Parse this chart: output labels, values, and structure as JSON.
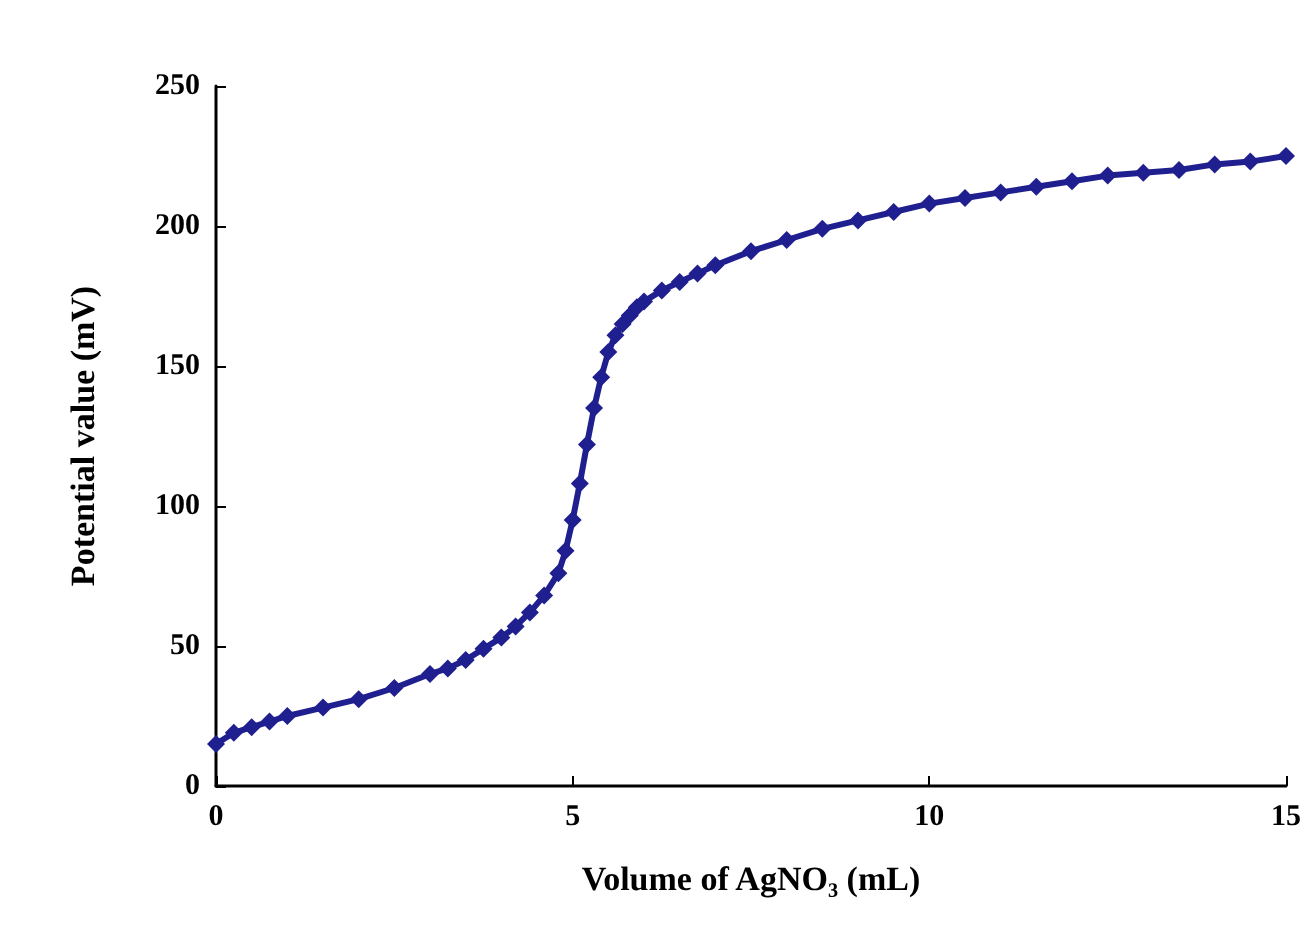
{
  "chart_data": {
    "type": "line",
    "xlabel": "Volume of AgNO₃ (mL)",
    "ylabel": "Potential value (mV)",
    "xlim": [
      0,
      15
    ],
    "xticks": [
      0,
      5,
      10,
      15
    ],
    "ylim": [
      0,
      250
    ],
    "yticks": [
      0,
      50,
      100,
      150,
      200,
      250
    ],
    "grid": false,
    "marker": "diamond",
    "series": [
      {
        "color": "#1f1f8f",
        "x": [
          0,
          0.25,
          0.5,
          0.75,
          1,
          1.5,
          2,
          2.5,
          3,
          3.25,
          3.5,
          3.75,
          4,
          4.2,
          4.4,
          4.6,
          4.8,
          4.9,
          5,
          5.1,
          5.2,
          5.3,
          5.4,
          5.5,
          5.6,
          5.7,
          5.8,
          5.9,
          6,
          6.25,
          6.5,
          6.75,
          7,
          7.5,
          8,
          8.5,
          9,
          9.5,
          10,
          10.5,
          11,
          11.5,
          12,
          12.5,
          13,
          13.5,
          14,
          14.5,
          15
        ],
        "values": [
          15,
          19,
          21,
          23,
          25,
          28,
          31,
          35,
          40,
          42,
          45,
          49,
          53,
          57,
          62,
          68,
          76,
          84,
          95,
          108,
          122,
          135,
          146,
          155,
          161,
          165,
          168,
          171,
          173,
          177,
          180,
          183,
          186,
          191,
          195,
          199,
          202,
          205,
          208,
          210,
          212,
          214,
          216,
          218,
          219,
          220,
          222,
          223,
          225
        ]
      }
    ]
  }
}
